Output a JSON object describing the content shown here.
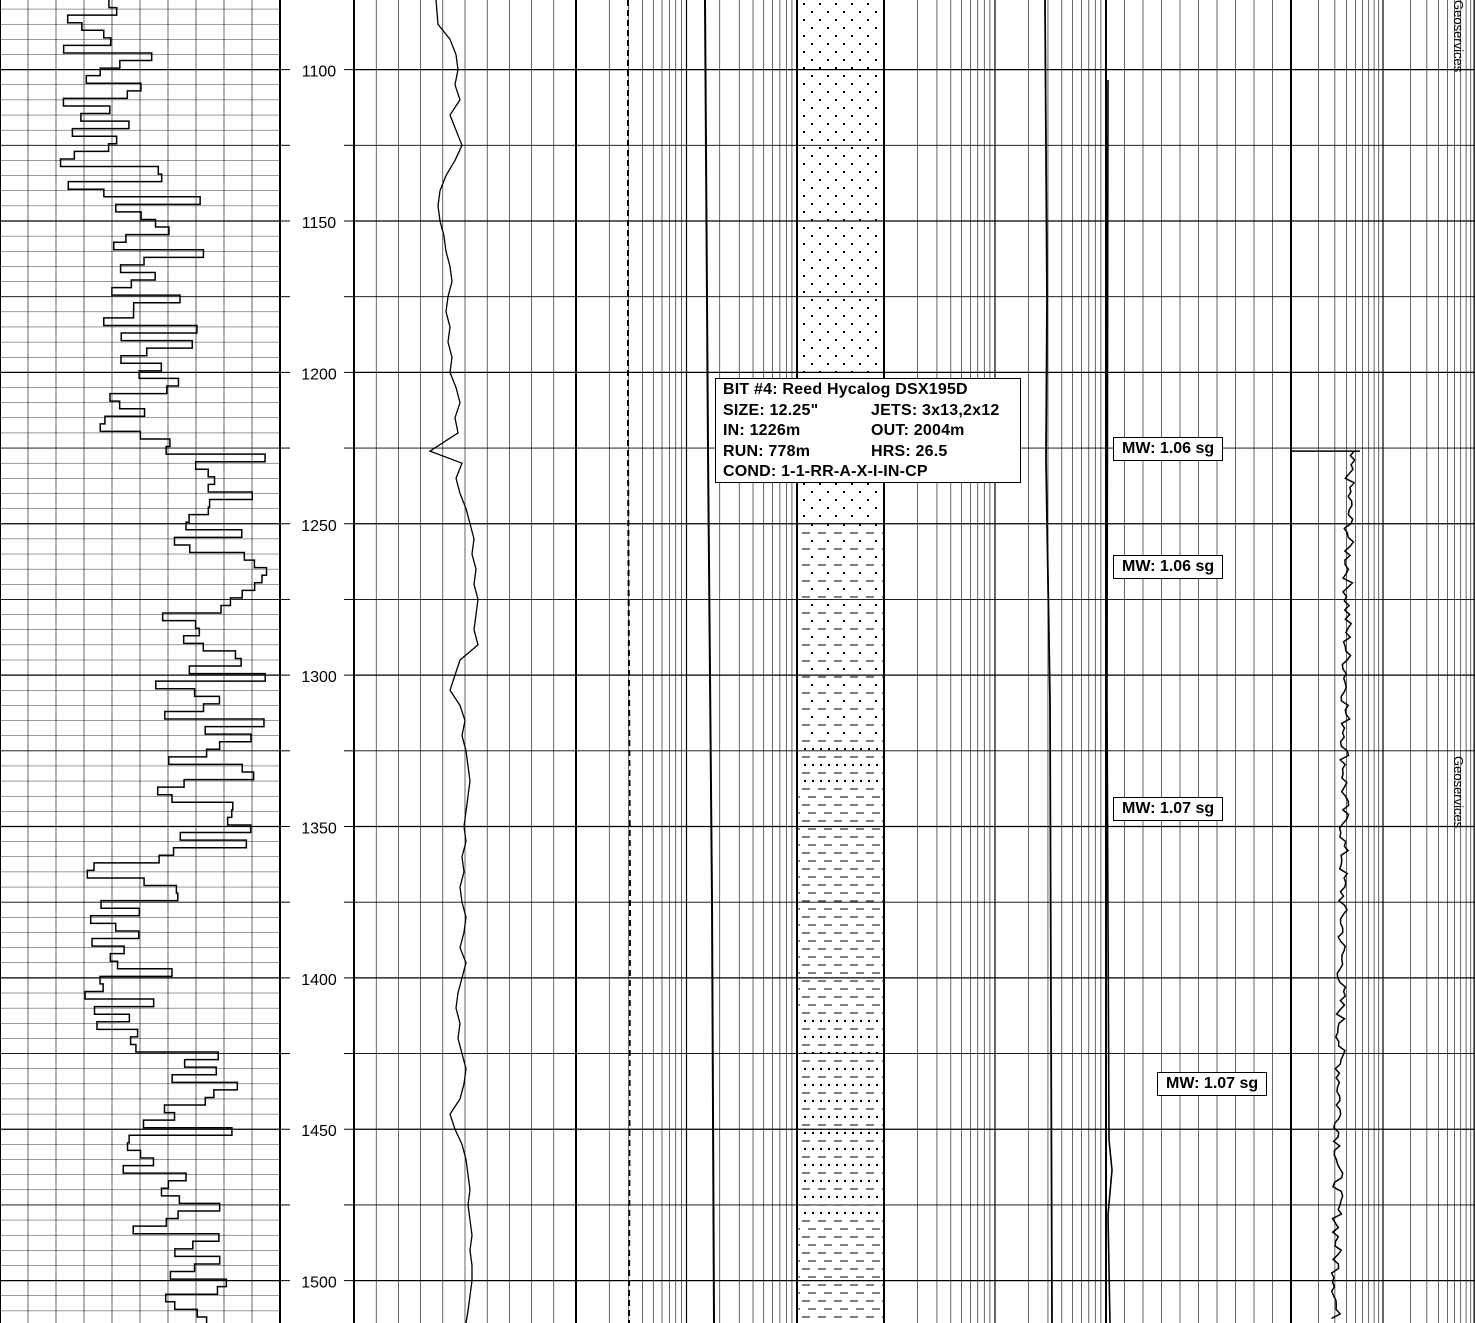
{
  "chart_data": {
    "type": "line",
    "title": "",
    "ylabel": "",
    "depth_range_m": [
      1077,
      1514
    ],
    "depth_axis": {
      "tick_labels": [
        "1100",
        "1150",
        "1200",
        "1250",
        "1300",
        "1350",
        "1400",
        "1450",
        "1500"
      ],
      "grid_interval_m": 25
    },
    "grid": true,
    "tracks": [
      {
        "name": "drill-rate",
        "scale": "linear"
      },
      {
        "name": "depth",
        "scale": "none"
      },
      {
        "name": "gamma-ray",
        "scale": "linear"
      },
      {
        "name": "gas-curves",
        "scale": "log"
      },
      {
        "name": "lithology",
        "scale": "none"
      },
      {
        "name": "mud-properties",
        "scale": "log"
      },
      {
        "name": "mud-weight",
        "scale": "linear"
      },
      {
        "name": "total-gas",
        "scale": "log"
      }
    ],
    "lithology_intervals": [
      {
        "top": 1077,
        "base": 1237,
        "type": "sandstone"
      },
      {
        "top": 1237,
        "base": 1250,
        "type": "sandstone"
      },
      {
        "top": 1250,
        "base": 1320,
        "type": "silty-shale"
      },
      {
        "top": 1320,
        "base": 1340,
        "type": "sandy-shale"
      },
      {
        "top": 1340,
        "base": 1410,
        "type": "shale"
      },
      {
        "top": 1410,
        "base": 1480,
        "type": "sandy-shale"
      },
      {
        "top": 1480,
        "base": 1514,
        "type": "shale"
      }
    ],
    "gr_curve": [
      [
        1077,
        436
      ],
      [
        1085,
        438
      ],
      [
        1090,
        450
      ],
      [
        1095,
        456
      ],
      [
        1100,
        458
      ],
      [
        1105,
        455
      ],
      [
        1110,
        460
      ],
      [
        1115,
        450
      ],
      [
        1120,
        456
      ],
      [
        1125,
        462
      ],
      [
        1130,
        455
      ],
      [
        1135,
        446
      ],
      [
        1140,
        440
      ],
      [
        1145,
        438
      ],
      [
        1150,
        440
      ],
      [
        1155,
        444
      ],
      [
        1160,
        446
      ],
      [
        1165,
        450
      ],
      [
        1170,
        452
      ],
      [
        1175,
        448
      ],
      [
        1180,
        446
      ],
      [
        1185,
        450
      ],
      [
        1190,
        448
      ],
      [
        1195,
        452
      ],
      [
        1200,
        450
      ],
      [
        1205,
        456
      ],
      [
        1210,
        460
      ],
      [
        1215,
        455
      ],
      [
        1220,
        458
      ],
      [
        1226,
        430
      ],
      [
        1230,
        462
      ],
      [
        1235,
        456
      ],
      [
        1240,
        460
      ],
      [
        1245,
        466
      ],
      [
        1250,
        470
      ],
      [
        1255,
        474
      ],
      [
        1260,
        472
      ],
      [
        1265,
        476
      ],
      [
        1270,
        474
      ],
      [
        1275,
        478
      ],
      [
        1280,
        476
      ],
      [
        1285,
        474
      ],
      [
        1290,
        478
      ],
      [
        1295,
        460
      ],
      [
        1300,
        455
      ],
      [
        1305,
        450
      ],
      [
        1310,
        460
      ],
      [
        1315,
        465
      ],
      [
        1320,
        462
      ],
      [
        1325,
        466
      ],
      [
        1330,
        468
      ],
      [
        1335,
        470
      ],
      [
        1340,
        468
      ],
      [
        1345,
        466
      ],
      [
        1350,
        464
      ],
      [
        1355,
        466
      ],
      [
        1360,
        462
      ],
      [
        1365,
        464
      ],
      [
        1370,
        460
      ],
      [
        1375,
        462
      ],
      [
        1380,
        466
      ],
      [
        1385,
        464
      ],
      [
        1390,
        460
      ],
      [
        1395,
        466
      ],
      [
        1400,
        462
      ],
      [
        1405,
        458
      ],
      [
        1410,
        456
      ],
      [
        1415,
        460
      ],
      [
        1420,
        458
      ],
      [
        1425,
        462
      ],
      [
        1430,
        466
      ],
      [
        1435,
        464
      ],
      [
        1440,
        460
      ],
      [
        1445,
        450
      ],
      [
        1450,
        455
      ],
      [
        1455,
        462
      ],
      [
        1460,
        466
      ],
      [
        1465,
        468
      ],
      [
        1470,
        470
      ],
      [
        1475,
        468
      ],
      [
        1480,
        470
      ],
      [
        1485,
        472
      ],
      [
        1490,
        470
      ],
      [
        1495,
        472
      ],
      [
        1500,
        472
      ],
      [
        1505,
        470
      ],
      [
        1510,
        468
      ],
      [
        1514,
        466
      ]
    ],
    "annotations": [
      {
        "depth": 1226,
        "text": "BIT #4"
      },
      {
        "depth": 1226,
        "text": "MW: 1.06 sg"
      },
      {
        "depth": 1265,
        "text": "MW: 1.06 sg"
      },
      {
        "depth": 1343,
        "text": "MW: 1.07 sg"
      },
      {
        "depth": 1434,
        "text": "MW: 1.07 sg"
      }
    ]
  },
  "bit_record": {
    "line1": "BIT #4: Reed Hycalog DSX195D",
    "size": "SIZE: 12.25\"",
    "jets": "JETS: 3x13,2x12",
    "in": "IN: 1226m",
    "out": "OUT: 2004m",
    "run": "RUN: 778m",
    "hrs": "HRS: 26.5",
    "cond": "COND: 1-1-RR-A-X-I-IN-CP"
  },
  "mud_weights": [
    "MW: 1.06 sg",
    "MW: 1.06 sg",
    "MW: 1.07 sg",
    "MW: 1.07 sg"
  ],
  "watermark": [
    "Geoservices",
    "Geoservices"
  ],
  "colors": {
    "grid": "#000000",
    "background": "#ffffff"
  }
}
